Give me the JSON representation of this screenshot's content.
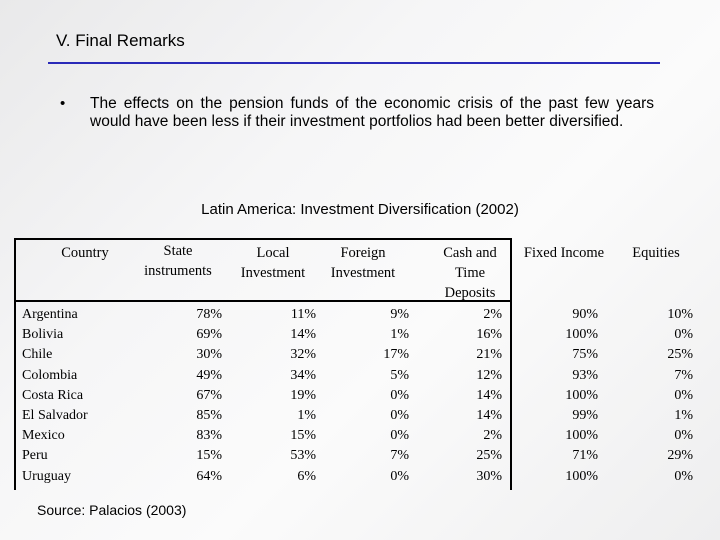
{
  "slide": {
    "title": "V. Final Remarks",
    "bullet_marker": "•",
    "bullet_text": "The effects on the pension funds of the economic crisis of the past few years would have been less if their investment portfolios had been better diversified.",
    "accent_color": "#2a2ab8"
  },
  "table": {
    "title": "Latin America: Investment Diversification (2002)",
    "headers": {
      "country": "Country",
      "state_1": "State",
      "state_2": "instruments",
      "local_1": "Local",
      "local_2": "Investment",
      "foreign_1": "Foreign",
      "foreign_2": "Investment",
      "cash_1": "Cash and",
      "cash_2": "Time",
      "cash_3": "Deposits",
      "fixed": "Fixed Income",
      "equities": "Equities"
    },
    "rows": [
      {
        "country": "Argentina",
        "state": "78%",
        "local": "11%",
        "foreign": "9%",
        "cash": "2%",
        "fixed": "90%",
        "equities": "10%"
      },
      {
        "country": "Bolivia",
        "state": "69%",
        "local": "14%",
        "foreign": "1%",
        "cash": "16%",
        "fixed": "100%",
        "equities": "0%"
      },
      {
        "country": "Chile",
        "state": "30%",
        "local": "32%",
        "foreign": "17%",
        "cash": "21%",
        "fixed": "75%",
        "equities": "25%"
      },
      {
        "country": "Colombia",
        "state": "49%",
        "local": "34%",
        "foreign": "5%",
        "cash": "12%",
        "fixed": "93%",
        "equities": "7%"
      },
      {
        "country": "Costa Rica",
        "state": "67%",
        "local": "19%",
        "foreign": "0%",
        "cash": "14%",
        "fixed": "100%",
        "equities": "0%"
      },
      {
        "country": "El Salvador",
        "state": "85%",
        "local": "1%",
        "foreign": "0%",
        "cash": "14%",
        "fixed": "99%",
        "equities": "1%"
      },
      {
        "country": "Mexico",
        "state": "83%",
        "local": "15%",
        "foreign": "0%",
        "cash": "2%",
        "fixed": "100%",
        "equities": "0%"
      },
      {
        "country": "Peru",
        "state": "15%",
        "local": "53%",
        "foreign": "7%",
        "cash": "25%",
        "fixed": "71%",
        "equities": "29%"
      },
      {
        "country": "Uruguay",
        "state": "64%",
        "local": "6%",
        "foreign": "0%",
        "cash": "30%",
        "fixed": "100%",
        "equities": "0%"
      }
    ],
    "source": "Source: Palacios (2003)"
  }
}
